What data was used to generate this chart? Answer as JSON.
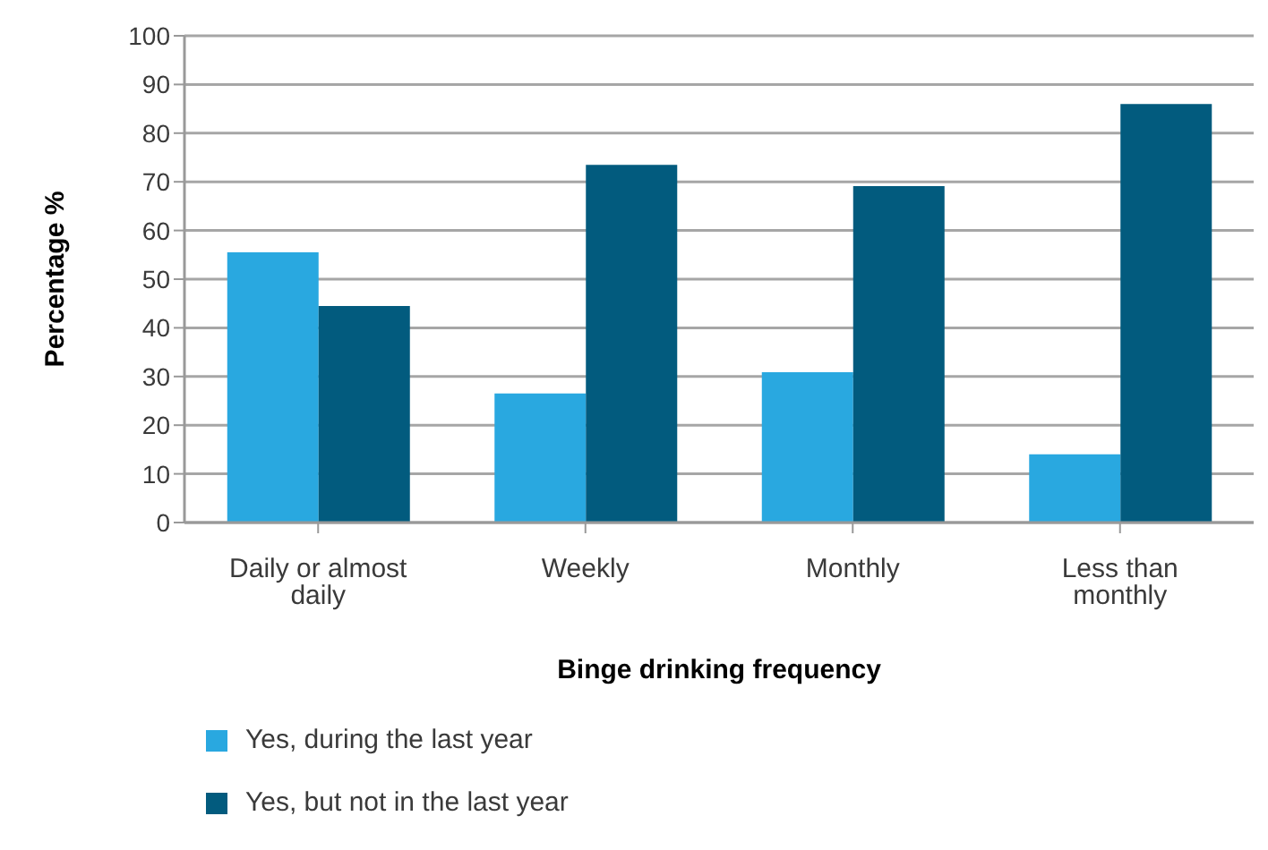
{
  "chart_data": {
    "type": "bar",
    "xlabel": "Binge drinking frequency",
    "ylabel": "Percentage %",
    "categories": [
      "Daily or almost daily",
      "Weekly",
      "Monthly",
      "Less than monthly"
    ],
    "series": [
      {
        "name": "Yes, during the last year",
        "color": "#29a8e0",
        "values": [
          55.5,
          26.5,
          30.9,
          14
        ]
      },
      {
        "name": "Yes, but not in the last year",
        "color": "#025b7e",
        "values": [
          44.5,
          73.5,
          69.1,
          86
        ]
      }
    ],
    "ylim": [
      0,
      100
    ],
    "yticks": [
      0,
      10,
      20,
      30,
      40,
      50,
      60,
      70,
      80,
      90,
      100
    ],
    "grid": "y",
    "legend": "bottom"
  }
}
